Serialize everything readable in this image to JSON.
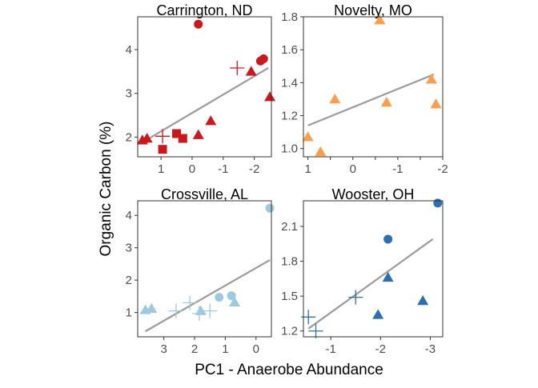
{
  "figure": {
    "xlabel": "PC1 - Anaerobe Abundance",
    "ylabel": "Organic Carbon (%)"
  },
  "chart_data": [
    {
      "type": "scatter",
      "title": "Carrington, ND",
      "color": "#cb181d",
      "xlim": [
        1.75,
        -2.55
      ],
      "ylim": [
        1.55,
        4.75
      ],
      "xticks": [
        1,
        0,
        -1,
        -2
      ],
      "yticks": [
        2,
        3,
        4
      ],
      "trend": {
        "x": [
          1.6,
          -2.45
        ],
        "y": [
          1.88,
          3.58
        ]
      },
      "points": [
        {
          "x": -0.2,
          "y": 4.58,
          "shape": "circle"
        },
        {
          "x": -2.3,
          "y": 3.79,
          "shape": "circle"
        },
        {
          "x": -2.2,
          "y": 3.74,
          "shape": "circle"
        },
        {
          "x": -1.45,
          "y": 3.58,
          "shape": "cross"
        },
        {
          "x": -1.9,
          "y": 3.5,
          "shape": "triangle"
        },
        {
          "x": -2.5,
          "y": 2.92,
          "shape": "triangle"
        },
        {
          "x": -0.6,
          "y": 2.37,
          "shape": "triangle"
        },
        {
          "x": -0.2,
          "y": 2.05,
          "shape": "triangle"
        },
        {
          "x": 0.5,
          "y": 2.08,
          "shape": "square"
        },
        {
          "x": 0.95,
          "y": 2.02,
          "shape": "cross"
        },
        {
          "x": 0.3,
          "y": 1.97,
          "shape": "square"
        },
        {
          "x": 1.45,
          "y": 1.97,
          "shape": "triangle"
        },
        {
          "x": 1.6,
          "y": 1.93,
          "shape": "triangle"
        },
        {
          "x": 0.95,
          "y": 1.72,
          "shape": "square"
        }
      ]
    },
    {
      "type": "scatter",
      "title": "Novelty, MO",
      "color": "#fd9e4e",
      "xlim": [
        1.1,
        -2.0
      ],
      "ylim": [
        0.95,
        1.8
      ],
      "xticks": [
        1,
        0.5,
        0,
        -0.5,
        -1,
        -1.5,
        -2
      ],
      "xticklabels": [
        "1",
        "",
        "0",
        "",
        "-1",
        "",
        "-2"
      ],
      "yticks": [
        1.0,
        1.2,
        1.4,
        1.6,
        1.8
      ],
      "yticklabels": [
        "1.0",
        "1.2",
        "1.4",
        "1.6",
        "1.8"
      ],
      "trend": {
        "x": [
          1.0,
          -1.8
        ],
        "y": [
          1.14,
          1.45
        ]
      },
      "points": [
        {
          "x": -0.6,
          "y": 1.78,
          "shape": "triangle"
        },
        {
          "x": -1.75,
          "y": 1.42,
          "shape": "triangle"
        },
        {
          "x": 0.4,
          "y": 1.3,
          "shape": "triangle"
        },
        {
          "x": -0.75,
          "y": 1.28,
          "shape": "triangle"
        },
        {
          "x": -1.85,
          "y": 1.27,
          "shape": "triangle"
        },
        {
          "x": 1.0,
          "y": 1.07,
          "shape": "triangle"
        },
        {
          "x": 0.72,
          "y": 0.98,
          "shape": "triangle"
        }
      ]
    },
    {
      "type": "scatter",
      "title": "Crossville, AL",
      "color": "#9ecae1",
      "xlim": [
        3.85,
        -0.5
      ],
      "ylim": [
        0.25,
        4.45
      ],
      "xticks": [
        3,
        2,
        1,
        0
      ],
      "yticks": [
        1,
        2,
        3,
        4
      ],
      "trend": {
        "x": [
          3.6,
          -0.45
        ],
        "y": [
          0.42,
          2.62
        ]
      },
      "points": [
        {
          "x": -0.45,
          "y": 4.22,
          "shape": "circle"
        },
        {
          "x": 0.8,
          "y": 1.52,
          "shape": "circle"
        },
        {
          "x": 1.2,
          "y": 1.47,
          "shape": "circle"
        },
        {
          "x": 0.7,
          "y": 1.32,
          "shape": "triangle"
        },
        {
          "x": 3.6,
          "y": 1.08,
          "shape": "triangle"
        },
        {
          "x": 3.4,
          "y": 1.12,
          "shape": "triangle"
        },
        {
          "x": 1.8,
          "y": 1.05,
          "shape": "triangle"
        },
        {
          "x": 2.15,
          "y": 1.3,
          "shape": "cross"
        },
        {
          "x": 2.6,
          "y": 1.05,
          "shape": "cross"
        },
        {
          "x": 1.5,
          "y": 1.05,
          "shape": "cross"
        },
        {
          "x": 1.85,
          "y": 0.97,
          "shape": "cross"
        }
      ]
    },
    {
      "type": "scatter",
      "title": "Wooster, OH",
      "color": "#2c6fae",
      "xlim": [
        -0.45,
        -3.25
      ],
      "ylim": [
        1.15,
        2.32
      ],
      "xticks": [
        -1,
        -2,
        -3
      ],
      "yticks": [
        1.2,
        1.5,
        1.8,
        2.1
      ],
      "trend": {
        "x": [
          -0.55,
          -3.05
        ],
        "y": [
          1.22,
          1.99
        ]
      },
      "points": [
        {
          "x": -3.15,
          "y": 2.3,
          "shape": "circle"
        },
        {
          "x": -2.15,
          "y": 1.99,
          "shape": "circle"
        },
        {
          "x": -2.15,
          "y": 1.66,
          "shape": "triangle"
        },
        {
          "x": -2.85,
          "y": 1.46,
          "shape": "triangle"
        },
        {
          "x": -1.95,
          "y": 1.34,
          "shape": "triangle"
        },
        {
          "x": -1.5,
          "y": 1.49,
          "shape": "cross"
        },
        {
          "x": -0.55,
          "y": 1.32,
          "shape": "cross"
        },
        {
          "x": -0.7,
          "y": 1.2,
          "shape": "cross"
        }
      ]
    }
  ]
}
